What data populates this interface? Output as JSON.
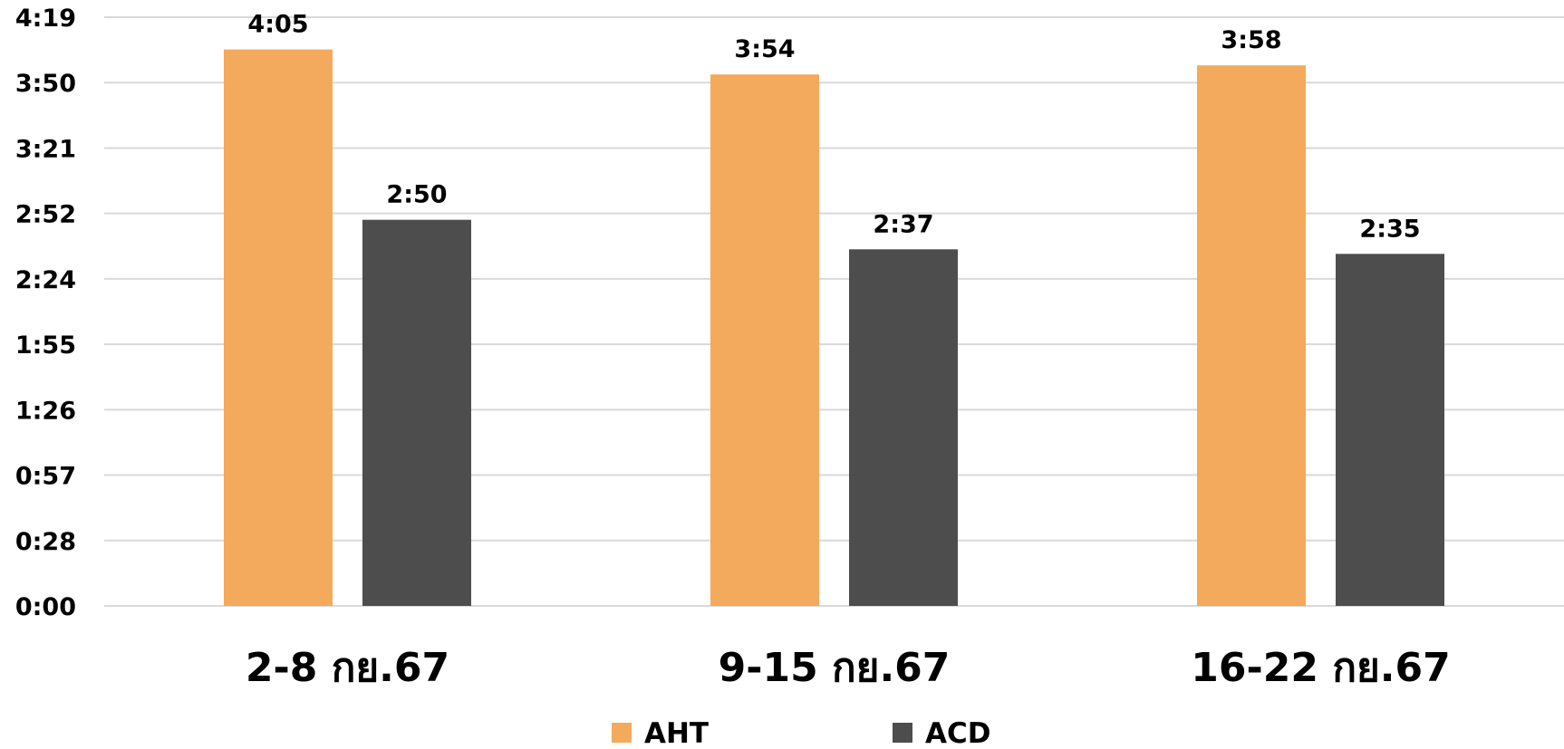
{
  "chart_data": {
    "type": "bar",
    "categories": [
      "2-8 กย.67",
      "9-15 กย.67",
      "16-22 กย.67"
    ],
    "series": [
      {
        "name": "AHT",
        "color": "#f4aa5c",
        "values": [
          "4:05",
          "3:54",
          "3:58"
        ],
        "seconds": [
          245,
          234,
          238
        ]
      },
      {
        "name": "ACD",
        "color": "#4d4d4d",
        "values": [
          "2:50",
          "2:37",
          "2:35"
        ],
        "seconds": [
          170,
          157,
          155
        ]
      }
    ],
    "y_ticks": [
      "0:00",
      "0:28",
      "0:57",
      "1:26",
      "1:55",
      "2:24",
      "2:52",
      "3:21",
      "3:50",
      "4:19"
    ],
    "y_tick_seconds": [
      0,
      28.8,
      57.6,
      86.4,
      115.2,
      144,
      172.8,
      201.6,
      230.4,
      259.2
    ],
    "ylim_seconds": [
      0,
      259.2
    ],
    "grid": true,
    "legend_position": "bottom",
    "title": "",
    "xlabel": "",
    "ylabel": ""
  }
}
